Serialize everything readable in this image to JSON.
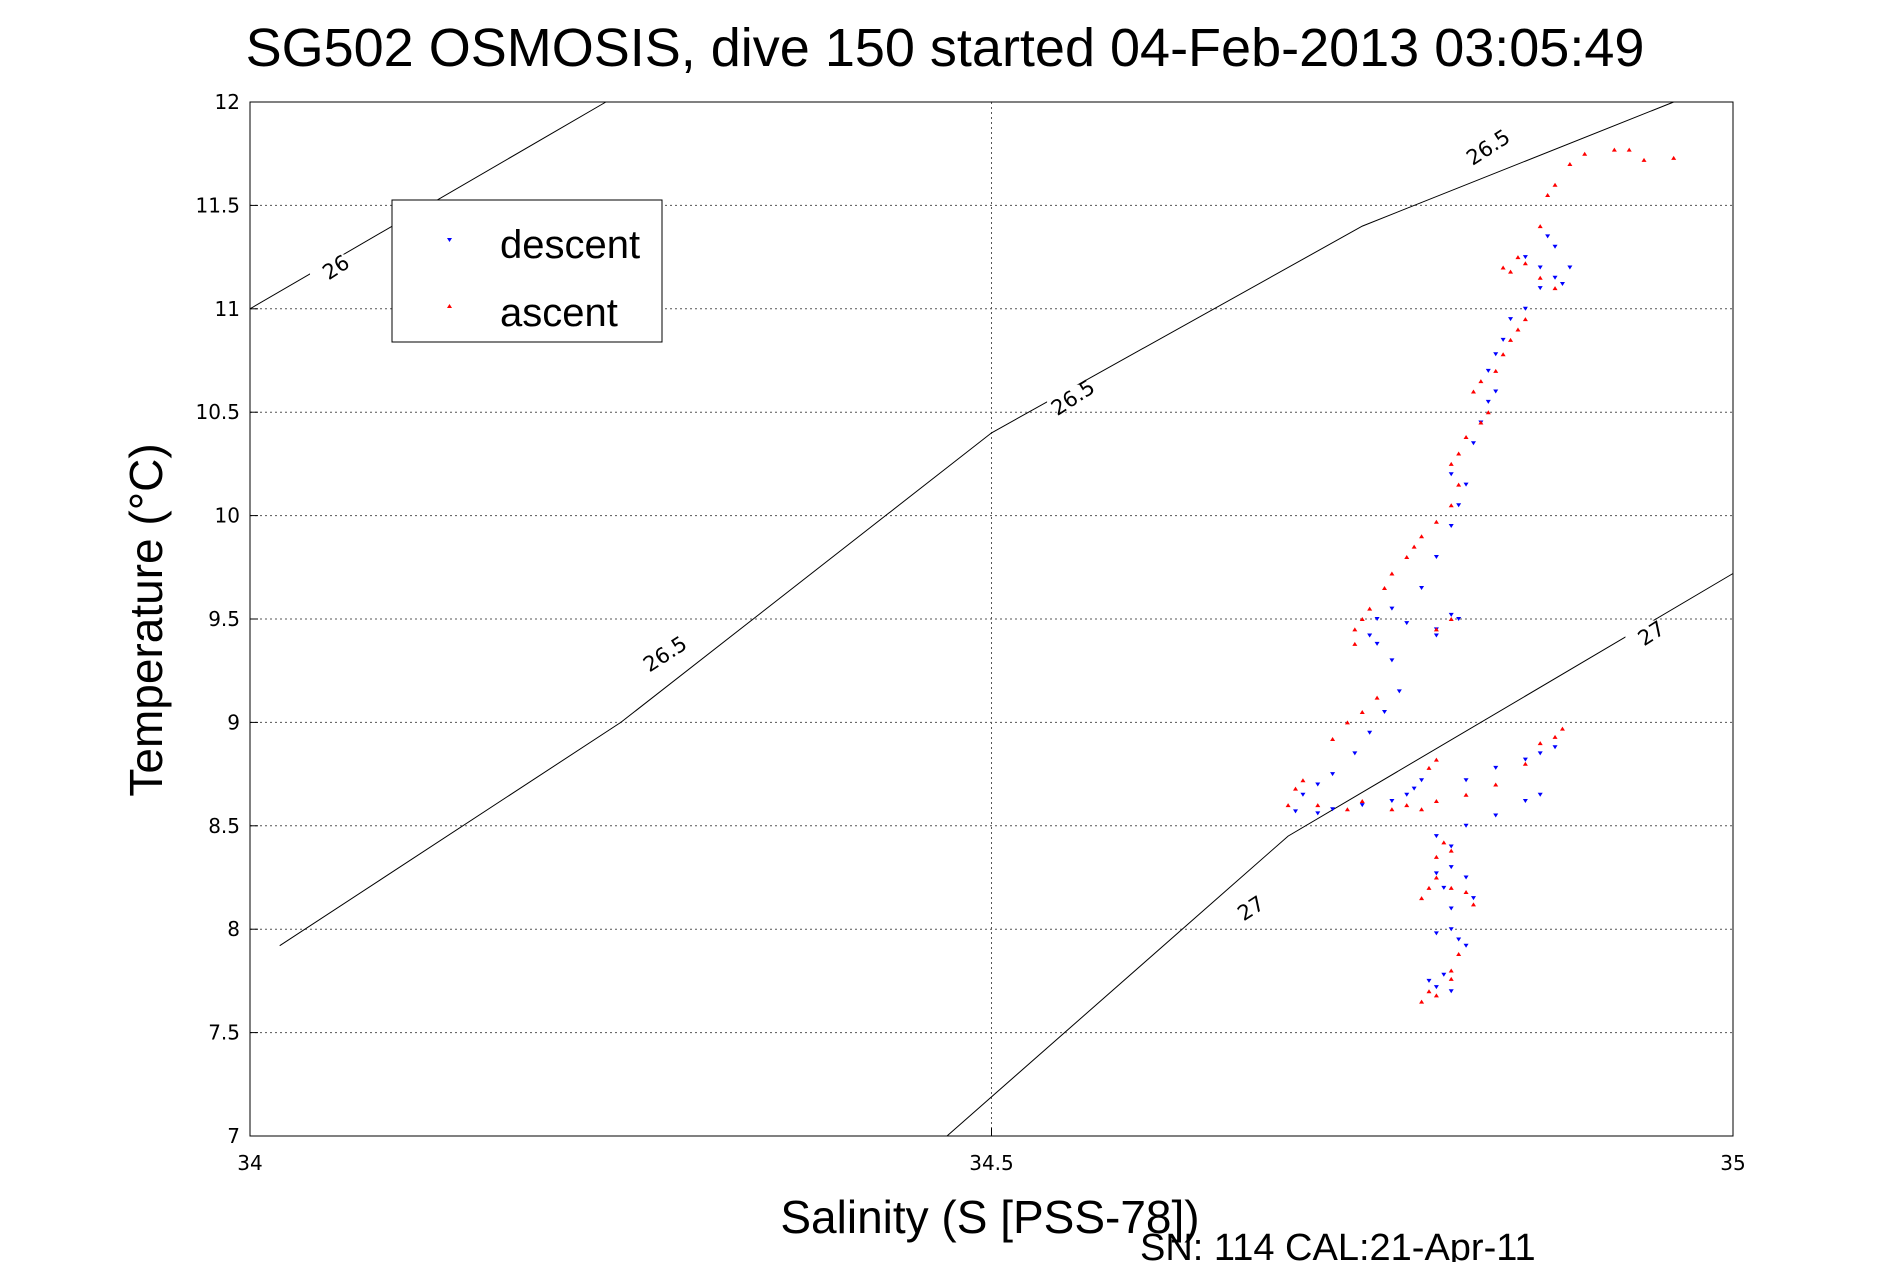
{
  "chart_data": {
    "type": "scatter",
    "title": "SG502 OSMOSIS, dive 150 started 04-Feb-2013 03:05:49",
    "xlabel": "Salinity (S [PSS-78])",
    "ylabel": "Temperature (°C)",
    "footer": "SN: 114  CAL:21-Apr-11",
    "xlim": [
      34,
      35
    ],
    "ylim": [
      7,
      12
    ],
    "xticks": [
      "34",
      "34.5",
      "35"
    ],
    "yticks": [
      "7",
      "7.5",
      "8",
      "8.5",
      "9",
      "9.5",
      "10",
      "10.5",
      "11",
      "11.5",
      "12"
    ],
    "grid": true,
    "legend_position": "top-left",
    "legend": [
      {
        "name": "descent",
        "color": "#0000ff",
        "marker": "triangle-down"
      },
      {
        "name": "ascent",
        "color": "#ff0000",
        "marker": "triangle-up"
      }
    ],
    "density_contours": [
      {
        "label": "26",
        "points": [
          [
            34,
            11.0
          ],
          [
            34.24,
            12.0
          ]
        ]
      },
      {
        "label": "26.5",
        "points": [
          [
            34.02,
            7.92
          ],
          [
            34.25,
            9.0
          ],
          [
            34.5,
            10.4
          ],
          [
            34.75,
            11.4
          ],
          [
            34.96,
            12.0
          ]
        ]
      },
      {
        "label": "27",
        "points": [
          [
            34.47,
            7.0
          ],
          [
            34.7,
            8.45
          ],
          [
            35,
            9.72
          ]
        ]
      }
    ],
    "contour_labels": [
      {
        "text": "26",
        "x": 34.058,
        "y": 11.2
      },
      {
        "text": "26.5",
        "x": 34.28,
        "y": 9.33
      },
      {
        "text": "26.5",
        "x": 34.555,
        "y": 10.57
      },
      {
        "text": "26.5",
        "x": 34.835,
        "y": 11.78
      },
      {
        "text": "27",
        "x": 34.675,
        "y": 8.1
      },
      {
        "text": "27",
        "x": 34.945,
        "y": 9.43
      }
    ],
    "series": [
      {
        "name": "descent",
        "color": "#0000ff",
        "marker": "triangle-down",
        "points": [
          [
            34.81,
            7.7
          ],
          [
            34.8,
            7.72
          ],
          [
            34.795,
            7.75
          ],
          [
            34.805,
            7.78
          ],
          [
            34.8,
            7.98
          ],
          [
            34.81,
            8.0
          ],
          [
            34.815,
            7.95
          ],
          [
            34.82,
            7.92
          ],
          [
            34.81,
            8.1
          ],
          [
            34.805,
            8.2
          ],
          [
            34.8,
            8.27
          ],
          [
            34.81,
            8.3
          ],
          [
            34.82,
            8.25
          ],
          [
            34.825,
            8.15
          ],
          [
            34.81,
            8.4
          ],
          [
            34.8,
            8.45
          ],
          [
            34.82,
            8.5
          ],
          [
            34.84,
            8.55
          ],
          [
            34.86,
            8.62
          ],
          [
            34.87,
            8.65
          ],
          [
            34.88,
            8.88
          ],
          [
            34.87,
            8.85
          ],
          [
            34.86,
            8.82
          ],
          [
            34.84,
            8.78
          ],
          [
            34.82,
            8.72
          ],
          [
            34.79,
            8.72
          ],
          [
            34.785,
            8.68
          ],
          [
            34.78,
            8.65
          ],
          [
            34.77,
            8.62
          ],
          [
            34.75,
            8.6
          ],
          [
            34.73,
            8.58
          ],
          [
            34.72,
            8.56
          ],
          [
            34.705,
            8.57
          ],
          [
            34.71,
            8.65
          ],
          [
            34.72,
            8.7
          ],
          [
            34.73,
            8.75
          ],
          [
            34.745,
            8.85
          ],
          [
            34.755,
            8.95
          ],
          [
            34.765,
            9.05
          ],
          [
            34.775,
            9.15
          ],
          [
            34.77,
            9.3
          ],
          [
            34.76,
            9.38
          ],
          [
            34.755,
            9.42
          ],
          [
            34.76,
            9.5
          ],
          [
            34.77,
            9.55
          ],
          [
            34.78,
            9.48
          ],
          [
            34.8,
            9.45
          ],
          [
            34.81,
            9.52
          ],
          [
            34.815,
            9.5
          ],
          [
            34.8,
            9.42
          ],
          [
            34.79,
            9.65
          ],
          [
            34.8,
            9.8
          ],
          [
            34.81,
            9.95
          ],
          [
            34.815,
            10.05
          ],
          [
            34.82,
            10.15
          ],
          [
            34.81,
            10.2
          ],
          [
            34.825,
            10.35
          ],
          [
            34.83,
            10.45
          ],
          [
            34.835,
            10.55
          ],
          [
            34.84,
            10.6
          ],
          [
            34.835,
            10.7
          ],
          [
            34.84,
            10.78
          ],
          [
            34.845,
            10.85
          ],
          [
            34.85,
            10.95
          ],
          [
            34.86,
            11.0
          ],
          [
            34.87,
            11.1
          ],
          [
            34.88,
            11.15
          ],
          [
            34.89,
            11.2
          ],
          [
            34.88,
            11.3
          ],
          [
            34.875,
            11.35
          ],
          [
            34.86,
            11.25
          ],
          [
            34.87,
            11.2
          ],
          [
            34.885,
            11.12
          ]
        ]
      },
      {
        "name": "ascent",
        "color": "#ff0000",
        "marker": "triangle-up",
        "points": [
          [
            34.79,
            7.65
          ],
          [
            34.795,
            7.7
          ],
          [
            34.8,
            7.68
          ],
          [
            34.81,
            7.76
          ],
          [
            34.81,
            7.8
          ],
          [
            34.815,
            7.88
          ],
          [
            34.79,
            8.15
          ],
          [
            34.795,
            8.2
          ],
          [
            34.8,
            8.25
          ],
          [
            34.81,
            8.2
          ],
          [
            34.82,
            8.18
          ],
          [
            34.825,
            8.12
          ],
          [
            34.8,
            8.35
          ],
          [
            34.81,
            8.38
          ],
          [
            34.805,
            8.42
          ],
          [
            34.77,
            8.58
          ],
          [
            34.78,
            8.6
          ],
          [
            34.79,
            8.58
          ],
          [
            34.8,
            8.62
          ],
          [
            34.795,
            8.78
          ],
          [
            34.8,
            8.82
          ],
          [
            34.82,
            8.65
          ],
          [
            34.84,
            8.7
          ],
          [
            34.86,
            8.8
          ],
          [
            34.87,
            8.9
          ],
          [
            34.885,
            8.97
          ],
          [
            34.88,
            8.93
          ],
          [
            34.7,
            8.6
          ],
          [
            34.705,
            8.68
          ],
          [
            34.71,
            8.72
          ],
          [
            34.72,
            8.6
          ],
          [
            34.74,
            8.58
          ],
          [
            34.75,
            8.62
          ],
          [
            34.73,
            8.92
          ],
          [
            34.74,
            9.0
          ],
          [
            34.75,
            9.05
          ],
          [
            34.76,
            9.12
          ],
          [
            34.745,
            9.38
          ],
          [
            34.745,
            9.45
          ],
          [
            34.75,
            9.5
          ],
          [
            34.755,
            9.55
          ],
          [
            34.765,
            9.65
          ],
          [
            34.77,
            9.72
          ],
          [
            34.8,
            9.45
          ],
          [
            34.81,
            9.5
          ],
          [
            34.78,
            9.8
          ],
          [
            34.785,
            9.85
          ],
          [
            34.79,
            9.9
          ],
          [
            34.8,
            9.97
          ],
          [
            34.81,
            10.05
          ],
          [
            34.815,
            10.15
          ],
          [
            34.81,
            10.25
          ],
          [
            34.815,
            10.3
          ],
          [
            34.82,
            10.38
          ],
          [
            34.83,
            10.45
          ],
          [
            34.835,
            10.5
          ],
          [
            34.825,
            10.6
          ],
          [
            34.83,
            10.65
          ],
          [
            34.84,
            10.7
          ],
          [
            34.845,
            10.78
          ],
          [
            34.85,
            10.85
          ],
          [
            34.855,
            10.9
          ],
          [
            34.86,
            10.95
          ],
          [
            34.845,
            11.2
          ],
          [
            34.85,
            11.18
          ],
          [
            34.855,
            11.25
          ],
          [
            34.86,
            11.22
          ],
          [
            34.87,
            11.15
          ],
          [
            34.88,
            11.1
          ],
          [
            34.87,
            11.4
          ],
          [
            34.875,
            11.55
          ],
          [
            34.88,
            11.6
          ],
          [
            34.89,
            11.7
          ],
          [
            34.9,
            11.75
          ],
          [
            34.92,
            11.77
          ],
          [
            34.93,
            11.77
          ],
          [
            34.94,
            11.72
          ],
          [
            34.96,
            11.73
          ]
        ]
      }
    ]
  }
}
